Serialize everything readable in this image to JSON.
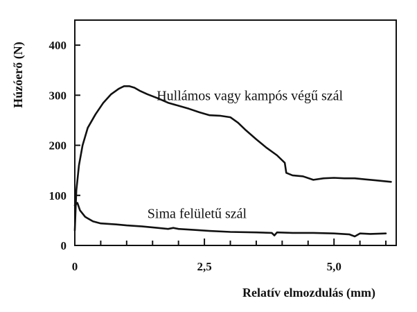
{
  "chart_data": {
    "type": "line",
    "title": "",
    "xlabel": "Relatív elmozdulás (mm)",
    "ylabel": "Húzóerő (N)",
    "xlim": [
      0,
      6.2
    ],
    "ylim": [
      0,
      450
    ],
    "x_ticks": [
      0,
      2.5,
      5.0
    ],
    "x_tick_labels": [
      "0",
      "2,5",
      "5,0"
    ],
    "x_minor_step": 0.5,
    "y_ticks": [
      0,
      100,
      200,
      300,
      400
    ],
    "y_tick_labels": [
      "0",
      "100",
      "200",
      "300",
      "400"
    ],
    "grid": false,
    "legend": "none",
    "series": [
      {
        "name": "Hullámos vagy kampós végű szál",
        "x": [
          0.0,
          0.03,
          0.08,
          0.15,
          0.25,
          0.4,
          0.55,
          0.7,
          0.85,
          0.95,
          1.05,
          1.15,
          1.25,
          1.4,
          1.6,
          1.8,
          2.0,
          2.2,
          2.4,
          2.6,
          2.8,
          3.0,
          3.15,
          3.3,
          3.5,
          3.7,
          3.9,
          4.05,
          4.08,
          4.2,
          4.4,
          4.6,
          4.8,
          5.0,
          5.2,
          5.4,
          5.6,
          5.8,
          6.1
        ],
        "y": [
          30,
          110,
          160,
          200,
          235,
          262,
          285,
          302,
          313,
          318,
          318,
          315,
          309,
          302,
          294,
          285,
          279,
          273,
          266,
          260,
          259,
          256,
          245,
          230,
          212,
          195,
          180,
          165,
          145,
          140,
          138,
          131,
          134,
          135,
          134,
          134,
          132,
          130,
          127
        ]
      },
      {
        "name": "Sima felületű szál",
        "x": [
          0.0,
          0.05,
          0.1,
          0.2,
          0.35,
          0.5,
          0.8,
          1.0,
          1.3,
          1.6,
          1.8,
          1.9,
          2.0,
          2.3,
          2.6,
          3.0,
          3.5,
          3.8,
          3.85,
          3.9,
          4.2,
          4.6,
          5.0,
          5.3,
          5.4,
          5.5,
          5.7,
          6.0
        ],
        "y": [
          80,
          85,
          70,
          57,
          48,
          44,
          42,
          40,
          38,
          35,
          33,
          35,
          33,
          31,
          29,
          27,
          26,
          25,
          20,
          26,
          25,
          25,
          24,
          22,
          18,
          24,
          23,
          24
        ]
      }
    ],
    "annotations": [
      {
        "text": "Hullámos vagy kampós végű szál",
        "x": 1.58,
        "y": 290
      },
      {
        "text": "Sima felületű szál",
        "x": 1.4,
        "y": 55
      }
    ]
  }
}
